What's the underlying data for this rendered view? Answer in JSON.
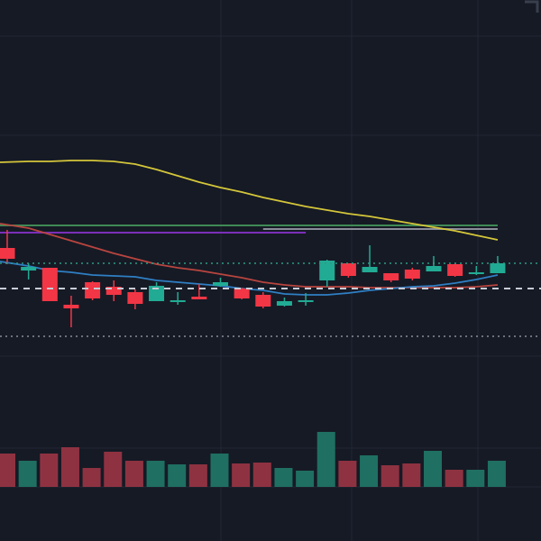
{
  "chart_data": {
    "type": "candlestick",
    "title": "",
    "price_range": [
      -2,
      40
    ],
    "colors": {
      "up": "#22ab94",
      "down": "#f23645",
      "vol_up": "#1f6f62",
      "vol_down": "#8e3241",
      "background": "#161a25",
      "grid": "#232733"
    },
    "candles": [
      {
        "o": 12.5,
        "h": 14.5,
        "l": 10.7,
        "c": 11.3
      },
      {
        "o": 10.0,
        "h": 10.8,
        "l": 9.0,
        "c": 10.4
      },
      {
        "o": 10.3,
        "h": 10.3,
        "l": 6.6,
        "c": 6.6
      },
      {
        "o": 6.2,
        "h": 7.2,
        "l": 3.7,
        "c": 5.8
      },
      {
        "o": 8.7,
        "h": 8.8,
        "l": 6.7,
        "c": 6.9
      },
      {
        "o": 8.2,
        "h": 8.9,
        "l": 6.6,
        "c": 7.3
      },
      {
        "o": 7.6,
        "h": 7.9,
        "l": 5.7,
        "c": 6.3
      },
      {
        "o": 6.6,
        "h": 8.7,
        "l": 6.6,
        "c": 8.3
      },
      {
        "o": 6.5,
        "h": 7.6,
        "l": 6.2,
        "c": 6.7
      },
      {
        "o": 7.1,
        "h": 8.5,
        "l": 6.8,
        "c": 6.8
      },
      {
        "o": 8.3,
        "h": 9.2,
        "l": 8.2,
        "c": 8.7
      },
      {
        "o": 8.0,
        "h": 8.1,
        "l": 6.8,
        "c": 6.9
      },
      {
        "o": 7.3,
        "h": 7.6,
        "l": 5.8,
        "c": 6.0
      },
      {
        "o": 6.1,
        "h": 7.0,
        "l": 6.0,
        "c": 6.6
      },
      {
        "o": 6.6,
        "h": 7.5,
        "l": 6.1,
        "c": 6.7
      },
      {
        "o": 8.9,
        "h": 11.2,
        "l": 8.2,
        "c": 11.1
      },
      {
        "o": 10.8,
        "h": 10.8,
        "l": 9.2,
        "c": 9.4
      },
      {
        "o": 9.8,
        "h": 12.8,
        "l": 9.8,
        "c": 10.4
      },
      {
        "o": 9.7,
        "h": 9.7,
        "l": 8.7,
        "c": 8.9
      },
      {
        "o": 10.1,
        "h": 10.3,
        "l": 8.9,
        "c": 9.1
      },
      {
        "o": 9.9,
        "h": 11.6,
        "l": 9.9,
        "c": 10.5
      },
      {
        "o": 10.7,
        "h": 10.8,
        "l": 9.3,
        "c": 9.4
      },
      {
        "o": 9.6,
        "h": 10.5,
        "l": 9.5,
        "c": 9.8
      },
      {
        "o": 9.7,
        "h": 11.6,
        "l": 9.7,
        "c": 10.8
      }
    ],
    "volume": [
      37,
      29,
      37,
      44,
      21,
      39,
      29,
      29,
      25,
      25,
      37,
      26,
      27,
      21,
      18,
      61,
      29,
      35,
      24,
      26,
      40,
      19,
      19,
      29
    ],
    "moving_averages": [
      {
        "name": "ma-yellow",
        "color": "#d4c63a",
        "values": [
          22.0,
          22.1,
          22.1,
          22.2,
          22.2,
          22.1,
          21.8,
          21.2,
          20.5,
          19.8,
          19.2,
          18.7,
          18.1,
          17.6,
          17.1,
          16.7,
          16.3,
          16.0,
          15.6,
          15.2,
          14.8,
          14.4,
          13.9,
          13.4
        ]
      },
      {
        "name": "ma-red",
        "color": "#b8453f",
        "values": [
          15.2,
          14.7,
          14.0,
          13.3,
          12.6,
          11.9,
          11.3,
          10.7,
          10.3,
          10.0,
          9.6,
          9.2,
          8.7,
          8.4,
          8.2,
          8.2,
          8.2,
          8.1,
          8.1,
          8.1,
          8.1,
          8.1,
          8.2,
          8.4
        ]
      },
      {
        "name": "ma-blue",
        "color": "#2f7fc4",
        "values": [
          11.0,
          10.5,
          10.0,
          9.8,
          9.5,
          9.4,
          9.3,
          8.9,
          8.7,
          8.5,
          8.3,
          8.0,
          7.8,
          7.4,
          7.3,
          7.3,
          7.5,
          7.8,
          8.0,
          8.2,
          8.3,
          8.6,
          9.0,
          9.5
        ]
      }
    ],
    "horizontal_lines": [
      {
        "name": "level-green",
        "color": "#3f8a55",
        "value": 15.0,
        "from": 0,
        "to": 23
      },
      {
        "name": "level-purple",
        "color": "#7a2fb8",
        "value": 14.2,
        "from": 0,
        "to": 14
      },
      {
        "name": "level-gray",
        "color": "#8a8d99",
        "value": 14.6,
        "from": 12,
        "to": 23
      }
    ],
    "price_markers": [
      {
        "name": "current-price-dotted",
        "color": "#2a9d85",
        "value": 10.8,
        "style": "dotted"
      },
      {
        "name": "reference-dashed",
        "color": "#c8ccd6",
        "value": 8.0,
        "style": "dashed"
      },
      {
        "name": "lower-dotted",
        "color": "#8a8d99",
        "value": 2.7,
        "style": "dotted"
      }
    ]
  }
}
